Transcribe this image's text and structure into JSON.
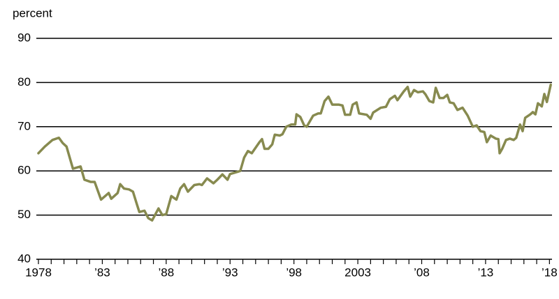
{
  "chart_data": {
    "type": "line",
    "ylabel": "percent",
    "x": [
      1978.0,
      1978.5,
      1979.1,
      1979.6,
      1979.9,
      1980.2,
      1980.5,
      1980.7,
      1981.3,
      1981.6,
      1982.1,
      1982.4,
      1982.9,
      1983.5,
      1983.7,
      1984.2,
      1984.4,
      1984.7,
      1985.1,
      1985.4,
      1985.7,
      1985.9,
      1986.3,
      1986.6,
      1986.9,
      1987.4,
      1987.7,
      1988.0,
      1988.4,
      1988.8,
      1989.1,
      1989.4,
      1989.7,
      1990.2,
      1990.6,
      1990.8,
      1991.2,
      1991.7,
      1992.0,
      1992.4,
      1992.8,
      1993.0,
      1993.6,
      1993.8,
      1994.1,
      1994.4,
      1994.7,
      1995.3,
      1995.5,
      1995.7,
      1996.0,
      1996.3,
      1996.5,
      1996.9,
      1997.1,
      1997.4,
      1997.8,
      1998.1,
      1998.2,
      1998.5,
      1998.8,
      1999.0,
      1999.5,
      1999.9,
      2000.1,
      2000.4,
      2000.7,
      2001.0,
      2001.5,
      2001.8,
      2002.0,
      2002.4,
      2002.6,
      2002.9,
      2003.1,
      2003.7,
      2004.0,
      2004.2,
      2004.8,
      2005.2,
      2005.5,
      2005.9,
      2006.1,
      2006.6,
      2006.9,
      2007.1,
      2007.4,
      2007.7,
      2008.1,
      2008.3,
      2008.6,
      2008.9,
      2009.1,
      2009.4,
      2009.7,
      2010.0,
      2010.2,
      2010.5,
      2010.8,
      2011.2,
      2011.6,
      2012.0,
      2012.3,
      2012.6,
      2012.9,
      2013.1,
      2013.4,
      2013.8,
      2014.0,
      2014.1,
      2014.3,
      2014.6,
      2014.9,
      2015.2,
      2015.4,
      2015.7,
      2015.9,
      2016.1,
      2016.5,
      2016.7,
      2016.9,
      2017.1,
      2017.4,
      2017.6,
      2017.8,
      2018.1
    ],
    "series": [
      {
        "name": "percent",
        "color": "#878a4f",
        "values": [
          64,
          65.5,
          67,
          67.5,
          66.3,
          65.5,
          62.5,
          60.5,
          61,
          58,
          57.5,
          57.5,
          53.5,
          55,
          53.7,
          55,
          57,
          56,
          55.8,
          55.3,
          52.5,
          50.7,
          51,
          49.3,
          48.8,
          51.5,
          50,
          50.2,
          54.3,
          53.5,
          56,
          57,
          55.3,
          56.8,
          57,
          56.8,
          58.3,
          57.2,
          58,
          59.2,
          58,
          59.3,
          59.8,
          60,
          63,
          64.5,
          64,
          66.5,
          67.2,
          65,
          65,
          66,
          68.2,
          68,
          68.3,
          70,
          70.5,
          70.5,
          72.8,
          72.2,
          70.3,
          70,
          72.5,
          73,
          73,
          75.8,
          76.8,
          75,
          75,
          74.8,
          72.7,
          72.7,
          75,
          75.5,
          73,
          72.7,
          71.8,
          73.2,
          74.3,
          74.5,
          76.2,
          77,
          76,
          78,
          79,
          76.8,
          78.3,
          77.8,
          78,
          77.3,
          75.8,
          75.5,
          78.8,
          76.5,
          76.5,
          77.2,
          75.5,
          75.3,
          73.8,
          74.3,
          72.5,
          70,
          70.3,
          69,
          68.8,
          66.5,
          68,
          67.3,
          67.2,
          64,
          65,
          67,
          67.3,
          67,
          67.5,
          70.5,
          69,
          72,
          72.8,
          73.3,
          72.8,
          75.3,
          74.6,
          77.4,
          75.6,
          79.5
        ]
      }
    ],
    "xlim": [
      1978,
      2018.2
    ],
    "xticks": [
      {
        "value": 1978,
        "label": "1978"
      },
      {
        "value": 1983,
        "label": "’83"
      },
      {
        "value": 1988,
        "label": "’88"
      },
      {
        "value": 1993,
        "label": "’93"
      },
      {
        "value": 1998,
        "label": "’98"
      },
      {
        "value": 2003,
        "label": "2003"
      },
      {
        "value": 2008,
        "label": "’08"
      },
      {
        "value": 2013,
        "label": "’13"
      },
      {
        "value": 2018,
        "label": "’18"
      }
    ],
    "x_minor_ticks": [
      1979,
      1980,
      1981,
      1982,
      1984,
      1985,
      1986,
      1987,
      1989,
      1990,
      1991,
      1992,
      1994,
      1995,
      1996,
      1997,
      1999,
      2000,
      2001,
      2002,
      2004,
      2005,
      2006,
      2007,
      2009,
      2010,
      2011,
      2012,
      2014,
      2015,
      2016,
      2017
    ],
    "ylim": [
      40,
      90
    ],
    "yticks": [
      40,
      50,
      60,
      70,
      80,
      90
    ],
    "grid": true
  }
}
